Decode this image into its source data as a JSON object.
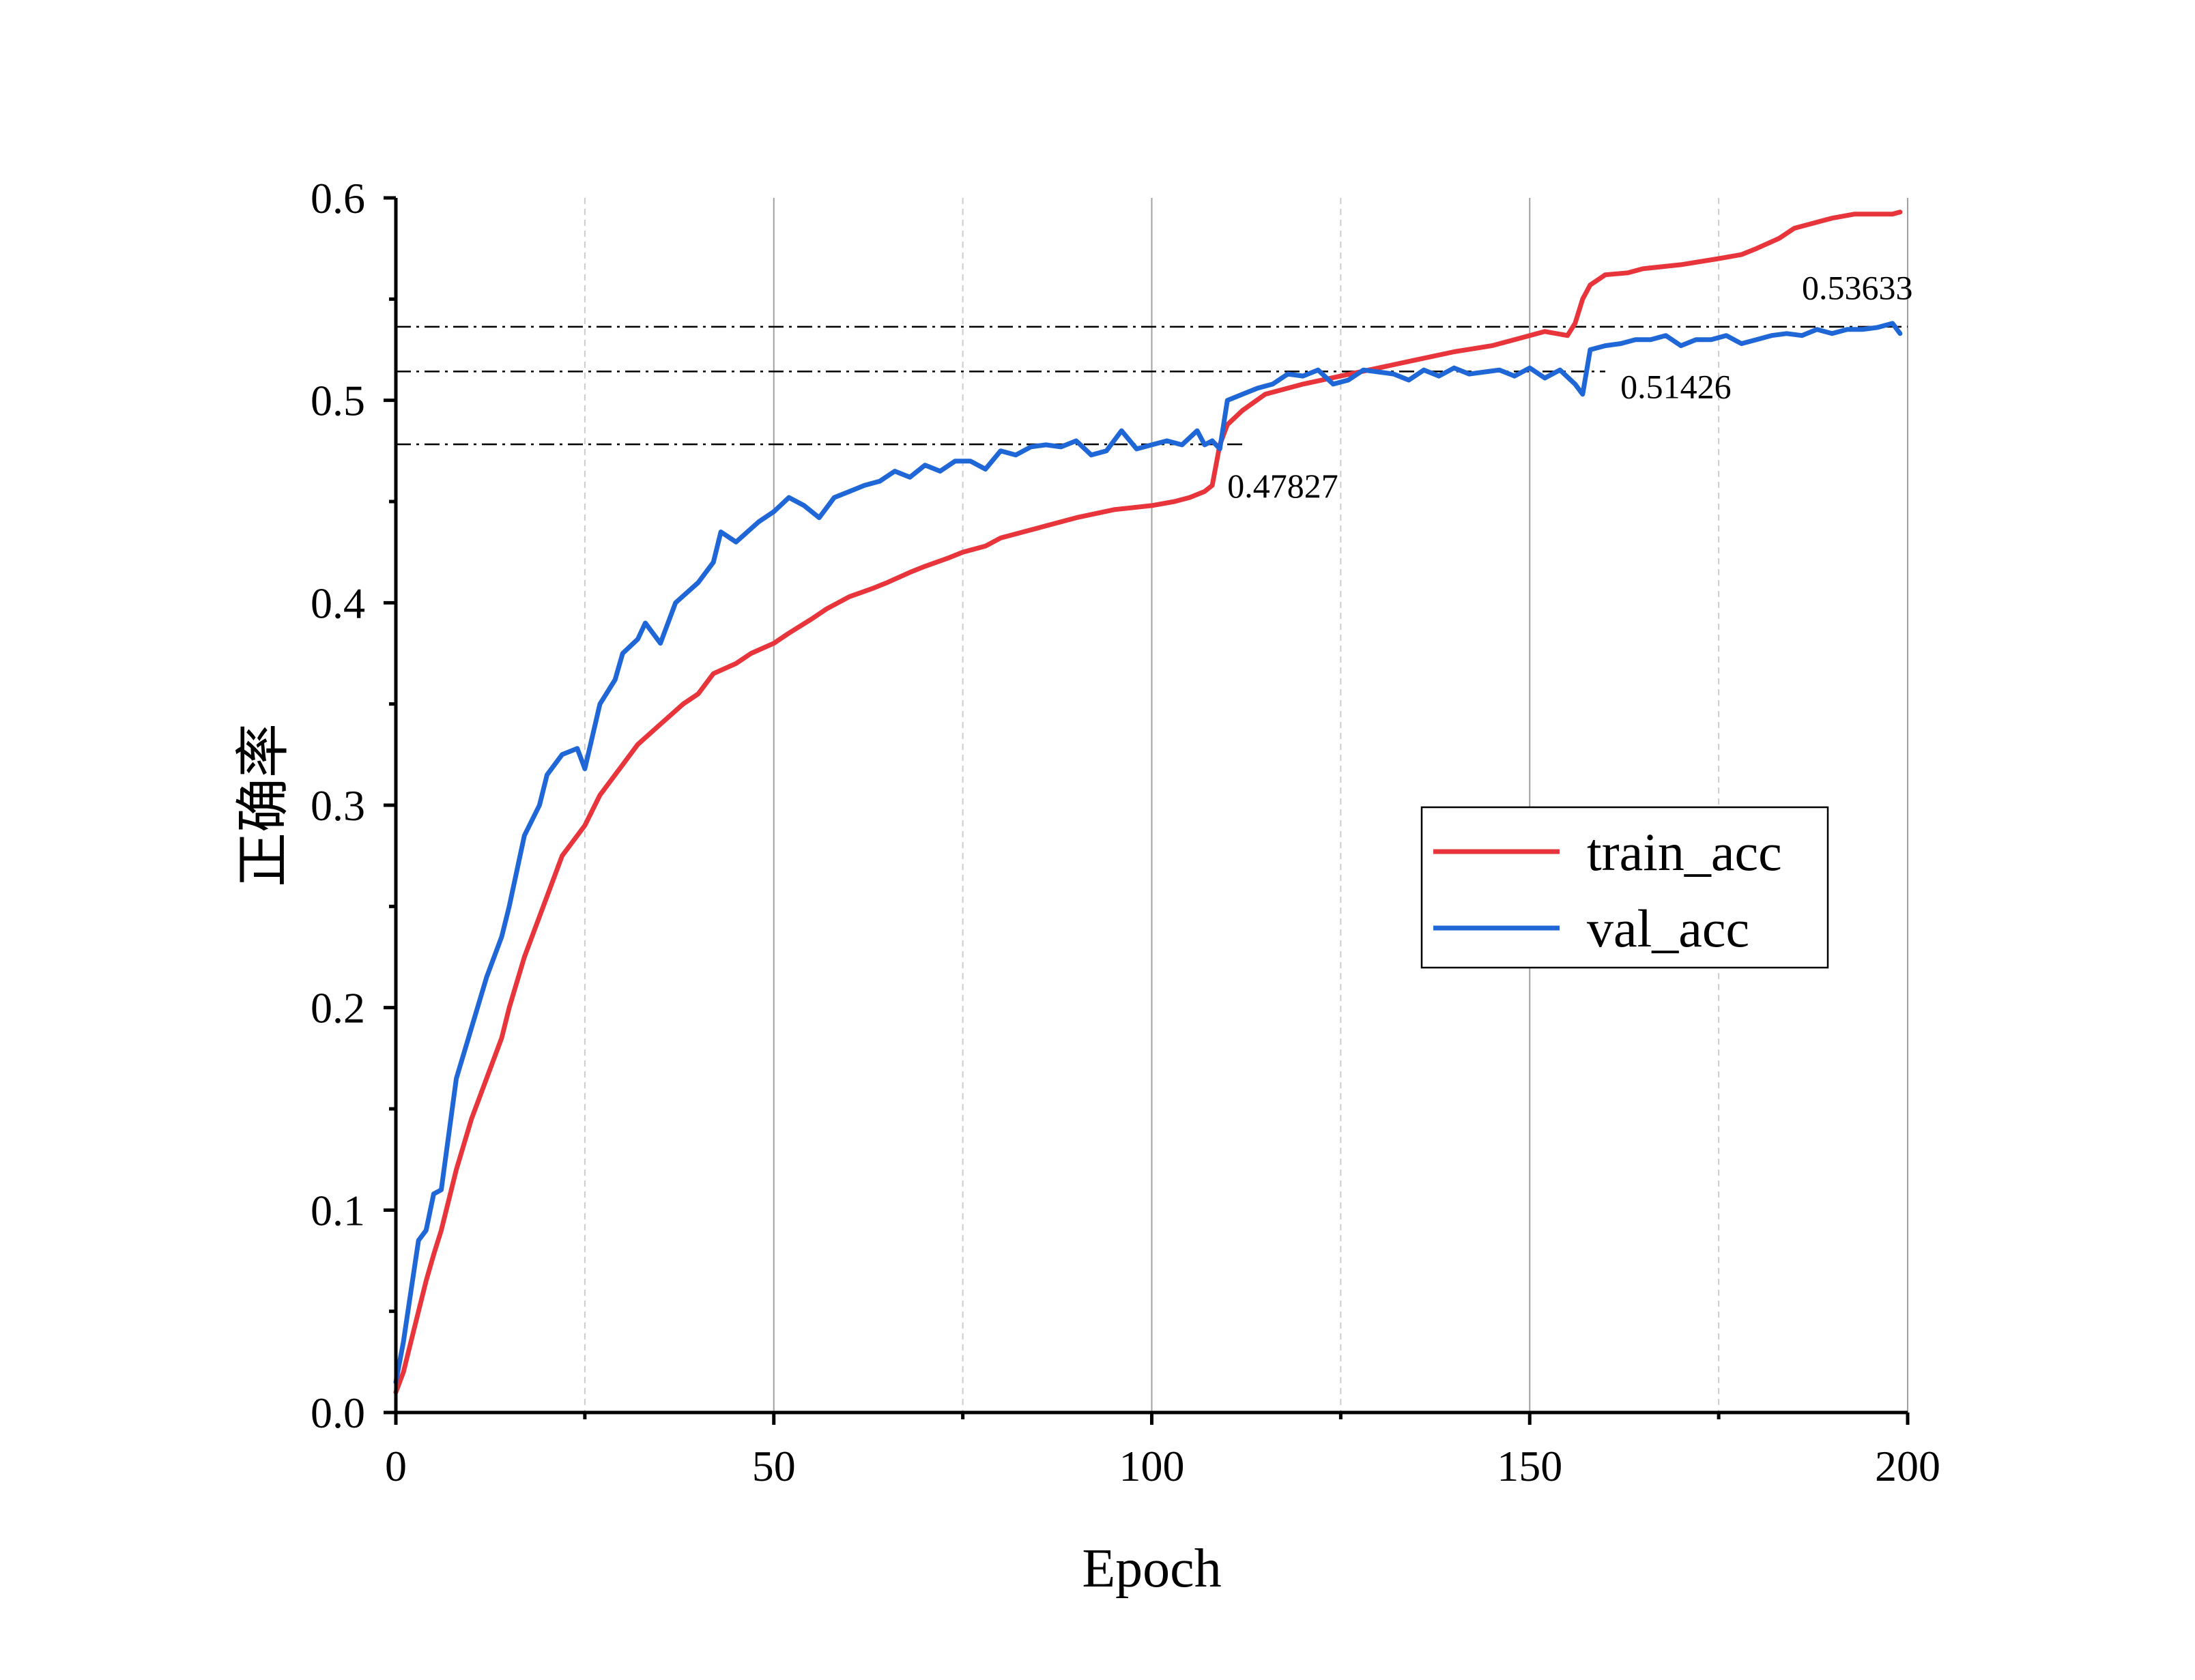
{
  "chart_data": {
    "type": "line",
    "title": "",
    "xlabel": "Epoch",
    "ylabel": "正确率",
    "xlim": [
      0,
      200
    ],
    "ylim": [
      0.0,
      0.6
    ],
    "xticks": [
      0,
      50,
      100,
      150,
      200
    ],
    "xtick_labels": [
      "0",
      "50",
      "100",
      "150",
      "200"
    ],
    "xminor": [
      25,
      75,
      125,
      175
    ],
    "yticks": [
      0.0,
      0.1,
      0.2,
      0.3,
      0.4,
      0.5,
      0.6
    ],
    "ytick_labels": [
      "0.0",
      "0.1",
      "0.2",
      "0.3",
      "0.4",
      "0.5",
      "0.6"
    ],
    "grid": "vertical",
    "legend_position": "center-right",
    "colors": {
      "train_acc": "#e8353b",
      "val_acc": "#1f66d6"
    },
    "series": [
      {
        "name": "train_acc",
        "x": [
          0,
          1,
          2,
          3,
          4,
          5,
          6,
          8,
          10,
          12,
          14,
          15,
          17,
          20,
          22,
          25,
          27,
          30,
          32,
          35,
          38,
          40,
          42,
          45,
          47,
          50,
          52,
          55,
          57,
          60,
          63,
          65,
          68,
          70,
          73,
          75,
          78,
          80,
          85,
          90,
          95,
          100,
          103,
          105,
          107,
          108,
          109,
          110,
          112,
          115,
          120,
          125,
          130,
          135,
          140,
          145,
          148,
          150,
          152,
          155,
          156,
          157,
          158,
          160,
          163,
          165,
          170,
          175,
          178,
          180,
          183,
          185,
          188,
          190,
          193,
          195,
          198,
          199
        ],
        "values": [
          0.01,
          0.02,
          0.035,
          0.05,
          0.065,
          0.078,
          0.09,
          0.12,
          0.145,
          0.165,
          0.185,
          0.2,
          0.225,
          0.255,
          0.275,
          0.29,
          0.305,
          0.32,
          0.33,
          0.34,
          0.35,
          0.355,
          0.365,
          0.37,
          0.375,
          0.38,
          0.385,
          0.392,
          0.397,
          0.403,
          0.407,
          0.41,
          0.415,
          0.418,
          0.422,
          0.425,
          0.428,
          0.432,
          0.437,
          0.442,
          0.446,
          0.448,
          0.45,
          0.452,
          0.455,
          0.458,
          0.478,
          0.488,
          0.495,
          0.503,
          0.508,
          0.512,
          0.516,
          0.52,
          0.524,
          0.527,
          0.53,
          0.532,
          0.534,
          0.532,
          0.538,
          0.55,
          0.557,
          0.562,
          0.563,
          0.565,
          0.567,
          0.57,
          0.572,
          0.575,
          0.58,
          0.585,
          0.588,
          0.59,
          0.592,
          0.592,
          0.592,
          0.593
        ]
      },
      {
        "name": "val_acc",
        "x": [
          0,
          1,
          2,
          3,
          4,
          5,
          6,
          8,
          10,
          12,
          14,
          15,
          17,
          19,
          20,
          22,
          24,
          25,
          27,
          29,
          30,
          32,
          33,
          35,
          37,
          40,
          42,
          43,
          45,
          48,
          50,
          52,
          54,
          56,
          58,
          60,
          62,
          64,
          66,
          68,
          70,
          72,
          74,
          76,
          78,
          80,
          82,
          84,
          86,
          88,
          90,
          92,
          94,
          96,
          98,
          100,
          102,
          104,
          106,
          107,
          108,
          109,
          110,
          112,
          114,
          116,
          118,
          120,
          122,
          124,
          126,
          128,
          130,
          132,
          134,
          136,
          138,
          140,
          142,
          144,
          146,
          148,
          150,
          152,
          154,
          156,
          157,
          158,
          160,
          162,
          164,
          166,
          168,
          170,
          172,
          174,
          176,
          178,
          180,
          182,
          184,
          186,
          188,
          190,
          192,
          194,
          196,
          198,
          199
        ],
        "values": [
          0.015,
          0.035,
          0.06,
          0.085,
          0.09,
          0.108,
          0.11,
          0.165,
          0.19,
          0.215,
          0.235,
          0.25,
          0.285,
          0.3,
          0.315,
          0.325,
          0.328,
          0.318,
          0.35,
          0.362,
          0.375,
          0.382,
          0.39,
          0.38,
          0.4,
          0.41,
          0.42,
          0.435,
          0.43,
          0.44,
          0.445,
          0.452,
          0.448,
          0.442,
          0.452,
          0.455,
          0.458,
          0.46,
          0.465,
          0.462,
          0.468,
          0.465,
          0.47,
          0.47,
          0.466,
          0.475,
          0.473,
          0.477,
          0.478,
          0.477,
          0.48,
          0.473,
          0.475,
          0.485,
          0.476,
          0.478,
          0.48,
          0.478,
          0.485,
          0.478,
          0.48,
          0.476,
          0.5,
          0.503,
          0.506,
          0.508,
          0.513,
          0.512,
          0.515,
          0.508,
          0.51,
          0.515,
          0.514,
          0.513,
          0.51,
          0.515,
          0.512,
          0.516,
          0.513,
          0.514,
          0.515,
          0.512,
          0.516,
          0.511,
          0.515,
          0.508,
          0.503,
          0.525,
          0.527,
          0.528,
          0.53,
          0.53,
          0.532,
          0.527,
          0.53,
          0.53,
          0.532,
          0.528,
          0.53,
          0.532,
          0.533,
          0.532,
          0.535,
          0.533,
          0.535,
          0.535,
          0.536,
          0.538,
          0.533
        ]
      }
    ],
    "reference_lines": [
      {
        "y": 0.53633,
        "x_end": 200,
        "label": "0.53633",
        "label_x": 186,
        "label_y": 0.55
      },
      {
        "y": 0.51426,
        "x_end": 160,
        "label": "0.51426",
        "label_x": 162,
        "label_y": 0.501
      },
      {
        "y": 0.47827,
        "x_end": 112,
        "label": "0.47827",
        "label_x": 110,
        "label_y": 0.452
      }
    ]
  }
}
